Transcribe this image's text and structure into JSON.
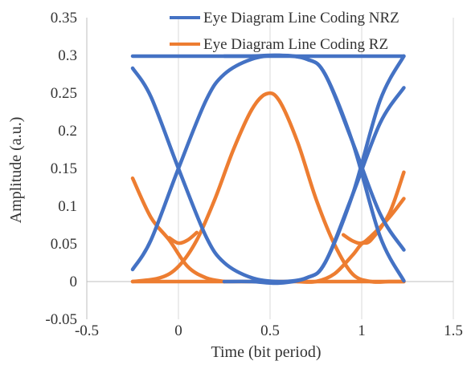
{
  "chart_data": {
    "type": "line",
    "title": "",
    "xlabel": "Time (bit period)",
    "ylabel": "Amplitude (a.u.)",
    "xlim": [
      -0.5,
      1.5
    ],
    "ylim": [
      -0.05,
      0.35
    ],
    "xticks": [
      -0.5,
      0,
      0.5,
      1,
      1.5
    ],
    "xtick_labels": [
      "-0.5",
      "0",
      "0.5",
      "1",
      "1.5"
    ],
    "yticks": [
      -0.05,
      0,
      0.05,
      0.1,
      0.15,
      0.2,
      0.25,
      0.3,
      0.35
    ],
    "ytick_labels": [
      "-0.05",
      "0",
      "0.05",
      "0.1",
      "0.15",
      "0.2",
      "0.25",
      "0.3",
      "0.35"
    ],
    "grid": "vertical",
    "legend_position": "top-right",
    "colors": {
      "nrz": "#4472C4",
      "rz": "#ED7D31",
      "grid": "#d9d9d9",
      "axis": "#bfbfbf"
    },
    "series": [
      {
        "name": "Eye Diagram Line Coding NRZ",
        "color": "#4472C4",
        "traces": [
          {
            "x": [
              -0.25,
              1.23
            ],
            "y": [
              0.299,
              0.299
            ]
          },
          {
            "x": [
              -0.25,
              -0.15,
              0.0,
              0.15,
              0.25,
              0.4,
              0.55,
              0.7,
              0.8,
              0.95,
              1.1,
              1.23
            ],
            "y": [
              0.283,
              0.245,
              0.15,
              0.06,
              0.025,
              0.005,
              0.0,
              0.005,
              0.025,
              0.115,
              0.24,
              0.299
            ]
          },
          {
            "x": [
              -0.25,
              -0.15,
              0.0,
              0.15,
              0.25,
              0.4,
              0.55,
              0.7,
              0.8,
              0.95,
              1.1,
              1.23
            ],
            "y": [
              0.016,
              0.055,
              0.15,
              0.24,
              0.275,
              0.295,
              0.3,
              0.295,
              0.275,
              0.185,
              0.06,
              0.001
            ]
          },
          {
            "x": [
              0.25,
              0.4,
              0.55,
              0.7,
              0.8,
              0.95,
              1.1,
              1.23
            ],
            "y": [
              0.299,
              0.299,
              0.3,
              0.295,
              0.275,
              0.185,
              0.09,
              0.042
            ]
          },
          {
            "x": [
              0.25,
              0.4,
              0.55,
              0.7,
              0.8,
              0.95,
              1.1,
              1.23
            ],
            "y": [
              0.0,
              0.0,
              -0.002,
              0.005,
              0.025,
              0.115,
              0.21,
              0.257
            ]
          }
        ]
      },
      {
        "name": "Eye Diagram Line Coding RZ",
        "color": "#ED7D31",
        "traces": [
          {
            "x": [
              -0.25,
              1.23
            ],
            "y": [
              0.0,
              0.0
            ]
          },
          {
            "x": [
              -0.25,
              -0.15,
              -0.05,
              0.05,
              0.15,
              0.25
            ],
            "y": [
              0.137,
              0.085,
              0.055,
              0.02,
              0.005,
              0.0
            ]
          },
          {
            "x": [
              -0.25,
              -0.1,
              0.0,
              0.1,
              0.2,
              0.3,
              0.4,
              0.48,
              0.55,
              0.65,
              0.75,
              0.85,
              0.95,
              1.05,
              1.15,
              1.23
            ],
            "y": [
              0.0,
              0.005,
              0.02,
              0.055,
              0.11,
              0.175,
              0.228,
              0.249,
              0.24,
              0.185,
              0.11,
              0.05,
              0.01,
              0.0,
              0.0,
              0.0
            ]
          },
          {
            "x": [
              -0.05,
              0.0,
              0.05,
              0.1
            ],
            "y": [
              0.058,
              0.051,
              0.055,
              0.065
            ]
          },
          {
            "x": [
              0.65,
              0.75,
              0.85,
              0.95,
              1.0,
              1.05,
              1.15,
              1.23
            ],
            "y": [
              0.0,
              0.0,
              0.01,
              0.035,
              0.05,
              0.055,
              0.09,
              0.145
            ]
          },
          {
            "x": [
              0.9,
              0.95,
              1.0,
              1.05,
              1.15,
              1.23
            ],
            "y": [
              0.062,
              0.054,
              0.051,
              0.06,
              0.085,
              0.11
            ]
          }
        ]
      }
    ]
  }
}
